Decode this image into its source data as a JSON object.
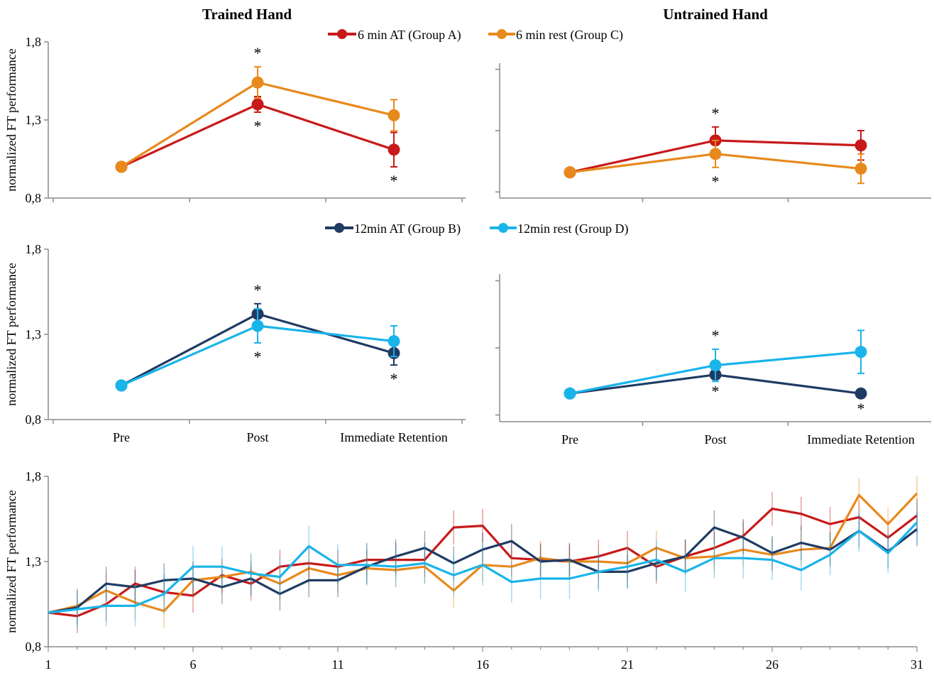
{
  "figure": {
    "titles": {
      "trained": "Trained Hand",
      "untrained": "Untrained Hand"
    },
    "ylabel": "normalized FT performance",
    "legend_top": [
      {
        "name": "6 min AT (Group A)",
        "color": "#c81a1a"
      },
      {
        "name": "6 min rest (Group C)",
        "color": "#e8891c"
      }
    ],
    "legend_mid": [
      {
        "name": "12min AT (Group B)",
        "color": "#1f3b63"
      },
      {
        "name": "12min rest (Group D)",
        "color": "#19b4ea"
      }
    ],
    "significance_marker": "*"
  },
  "chart_data": [
    {
      "type": "line",
      "panel": "trained-top",
      "title": "Trained Hand",
      "ylabel": "normalized FT performance",
      "categories": [
        "Pre",
        "Post",
        "Immediate Retention"
      ],
      "ylim": [
        0.8,
        1.8
      ],
      "yticks": [
        "0,8",
        "1,3",
        "1,8"
      ],
      "show_xtick_labels": false,
      "series": [
        {
          "name": "6 min AT (Group A)",
          "color": "#c81a1a",
          "values": [
            1.0,
            1.4,
            1.11
          ],
          "err": [
            0,
            0.05,
            0.11
          ],
          "stars": [
            null,
            "below",
            "below"
          ]
        },
        {
          "name": "6 min rest (Group C)",
          "color": "#e8891c",
          "values": [
            1.0,
            1.54,
            1.33
          ],
          "err": [
            0,
            0.1,
            0.1
          ],
          "stars": [
            null,
            "above",
            null
          ]
        }
      ]
    },
    {
      "type": "line",
      "panel": "untrained-top",
      "title": "Untrained Hand",
      "categories": [
        "Pre",
        "Post",
        "Immediate Retention"
      ],
      "ylim": [
        0.75,
        1.85
      ],
      "yticks": [],
      "show_xtick_labels": false,
      "series": [
        {
          "name": "6 min AT (Group A)",
          "color": "#c81a1a",
          "values": [
            0.96,
            1.22,
            1.18
          ],
          "err": [
            0,
            0.11,
            0.12
          ],
          "stars": [
            null,
            "above",
            null
          ]
        },
        {
          "name": "6 min rest (Group C)",
          "color": "#e8891c",
          "values": [
            0.96,
            1.11,
            0.99
          ],
          "err": [
            0,
            0.11,
            0.12
          ],
          "stars": [
            null,
            "below",
            null
          ]
        }
      ]
    },
    {
      "type": "line",
      "panel": "trained-mid",
      "ylabel": "normalized FT performance",
      "categories": [
        "Pre",
        "Post",
        "Immediate Retention"
      ],
      "ylim": [
        0.8,
        1.8
      ],
      "yticks": [
        "0,8",
        "1,3",
        "1,8"
      ],
      "show_xtick_labels": true,
      "series": [
        {
          "name": "12min AT (Group B)",
          "color": "#1f3b63",
          "values": [
            1.0,
            1.42,
            1.19
          ],
          "err": [
            0,
            0.06,
            0.07
          ],
          "stars": [
            null,
            "above",
            "below"
          ]
        },
        {
          "name": "12min rest (Group D)",
          "color": "#19b4ea",
          "values": [
            1.0,
            1.35,
            1.26
          ],
          "err": [
            0,
            0.1,
            0.09
          ],
          "stars": [
            null,
            "below",
            null
          ]
        }
      ]
    },
    {
      "type": "line",
      "panel": "untrained-mid",
      "categories": [
        "Pre",
        "Post",
        "Immediate Retention"
      ],
      "ylim": [
        0.75,
        1.85
      ],
      "yticks": [],
      "show_xtick_labels": true,
      "series": [
        {
          "name": "12min AT (Group B)",
          "color": "#1f3b63",
          "values": [
            0.96,
            1.1,
            0.96
          ],
          "err": [
            0,
            0.02,
            0.01
          ],
          "stars": [
            null,
            "below",
            "below"
          ]
        },
        {
          "name": "12min rest (Group D)",
          "color": "#19b4ea",
          "values": [
            0.96,
            1.17,
            1.27
          ],
          "err": [
            0,
            0.12,
            0.16
          ],
          "stars": [
            null,
            "above",
            null
          ]
        }
      ]
    },
    {
      "type": "line",
      "panel": "bottom-trials",
      "ylabel": "normalized FT performance",
      "x": [
        1,
        2,
        3,
        4,
        5,
        6,
        7,
        8,
        9,
        10,
        11,
        12,
        13,
        14,
        15,
        16,
        17,
        18,
        19,
        20,
        21,
        22,
        23,
        24,
        25,
        26,
        27,
        28,
        29,
        30,
        31
      ],
      "xticks": [
        1,
        6,
        11,
        16,
        21,
        26,
        31
      ],
      "xlim": [
        1,
        31
      ],
      "ylim": [
        0.8,
        1.8
      ],
      "yticks": [
        "0,8",
        "1,3",
        "1,8"
      ],
      "series": [
        {
          "name": "6 min AT (Group A)",
          "color": "#c81a1a",
          "err": 0.1,
          "values": [
            1.0,
            0.98,
            1.05,
            1.17,
            1.12,
            1.1,
            1.22,
            1.17,
            1.27,
            1.29,
            1.27,
            1.31,
            1.31,
            1.31,
            1.5,
            1.51,
            1.32,
            1.31,
            1.3,
            1.33,
            1.38,
            1.27,
            1.33,
            1.38,
            1.45,
            1.61,
            1.58,
            1.52,
            1.56,
            1.44,
            1.57
          ]
        },
        {
          "name": "6 min rest (Group C)",
          "color": "#e8891c",
          "err": 0.1,
          "values": [
            1.0,
            1.04,
            1.13,
            1.06,
            1.01,
            1.19,
            1.21,
            1.24,
            1.17,
            1.26,
            1.22,
            1.26,
            1.25,
            1.27,
            1.13,
            1.28,
            1.27,
            1.32,
            1.3,
            1.3,
            1.29,
            1.38,
            1.32,
            1.33,
            1.37,
            1.34,
            1.37,
            1.38,
            1.69,
            1.52,
            1.7
          ]
        },
        {
          "name": "12min AT (Group B)",
          "color": "#1f3b63",
          "err": 0.1,
          "values": [
            1.0,
            1.03,
            1.17,
            1.15,
            1.19,
            1.2,
            1.15,
            1.2,
            1.11,
            1.19,
            1.19,
            1.27,
            1.33,
            1.38,
            1.29,
            1.37,
            1.42,
            1.3,
            1.31,
            1.24,
            1.24,
            1.29,
            1.33,
            1.5,
            1.44,
            1.35,
            1.41,
            1.37,
            1.48,
            1.36,
            1.49
          ]
        },
        {
          "name": "12min rest (Group D)",
          "color": "#19b4ea",
          "err": 0.12,
          "values": [
            1.0,
            1.02,
            1.04,
            1.04,
            1.11,
            1.27,
            1.27,
            1.23,
            1.21,
            1.39,
            1.28,
            1.28,
            1.27,
            1.29,
            1.22,
            1.28,
            1.18,
            1.2,
            1.2,
            1.24,
            1.27,
            1.31,
            1.24,
            1.32,
            1.32,
            1.31,
            1.25,
            1.34,
            1.48,
            1.35,
            1.53
          ]
        }
      ]
    }
  ]
}
